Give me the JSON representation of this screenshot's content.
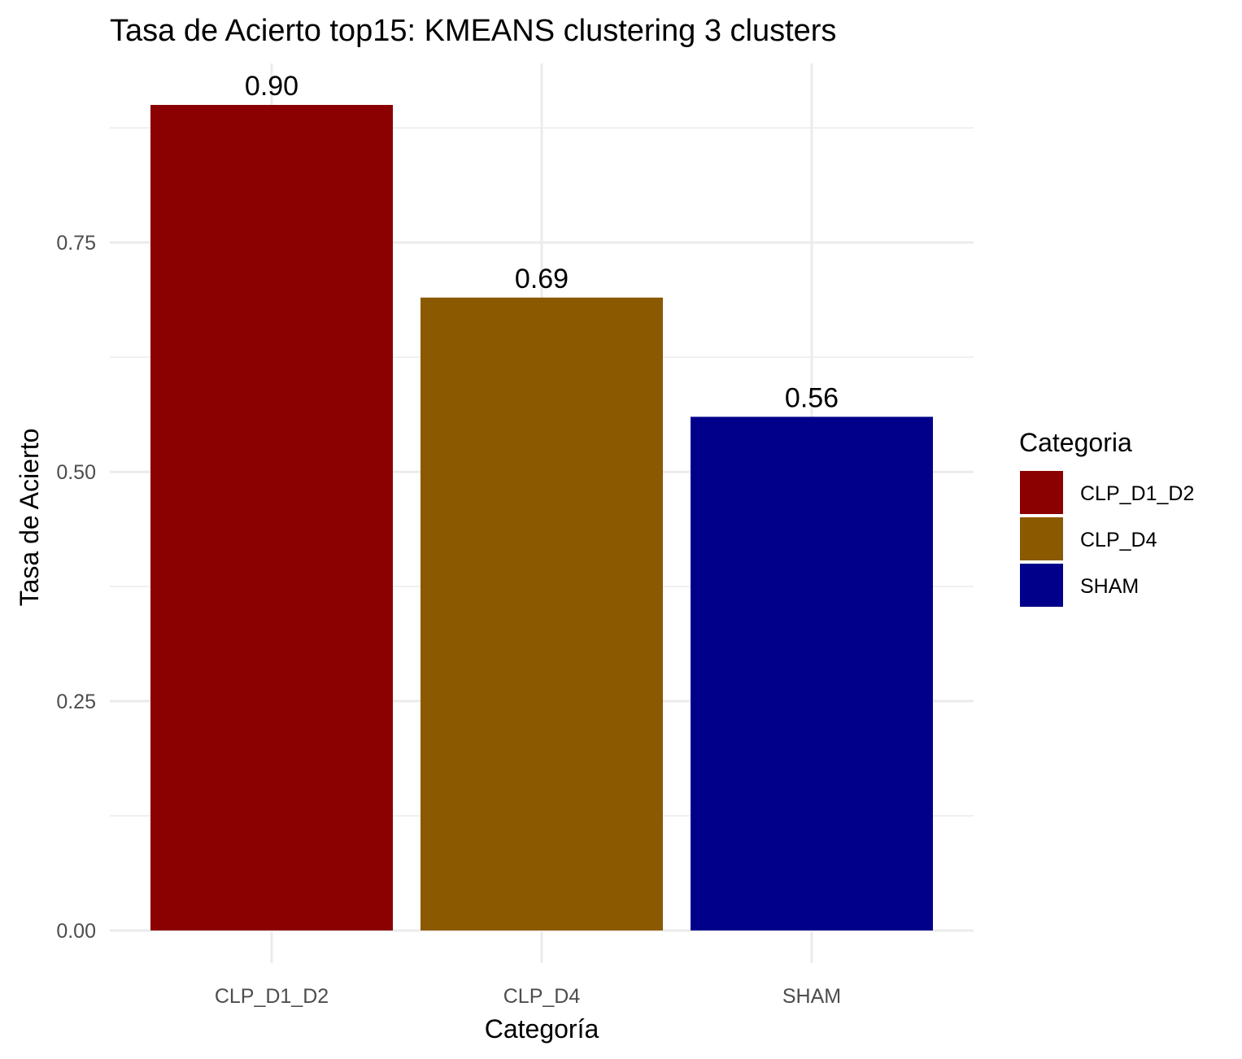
{
  "chart_data": {
    "type": "bar",
    "title": "Tasa de Acierto top15: KMEANS clustering 3 clusters",
    "xlabel": "Categoría",
    "ylabel": "Tasa de Acierto",
    "categories": [
      "CLP_D1_D2",
      "CLP_D4",
      "SHAM"
    ],
    "values": [
      0.9,
      0.69,
      0.56
    ],
    "value_labels": [
      "0.90",
      "0.69",
      "0.56"
    ],
    "colors": [
      "#8b0000",
      "#8b5a00",
      "#00008b"
    ],
    "ylim": [
      0,
      0.9
    ],
    "yticks": [
      0.0,
      0.25,
      0.5,
      0.75
    ],
    "ytick_labels": [
      "0.00",
      "0.25",
      "0.50",
      "0.75"
    ],
    "grid": true,
    "legend": {
      "title": "Categoria",
      "position": "right",
      "entries": [
        "CLP_D1_D2",
        "CLP_D4",
        "SHAM"
      ]
    }
  }
}
